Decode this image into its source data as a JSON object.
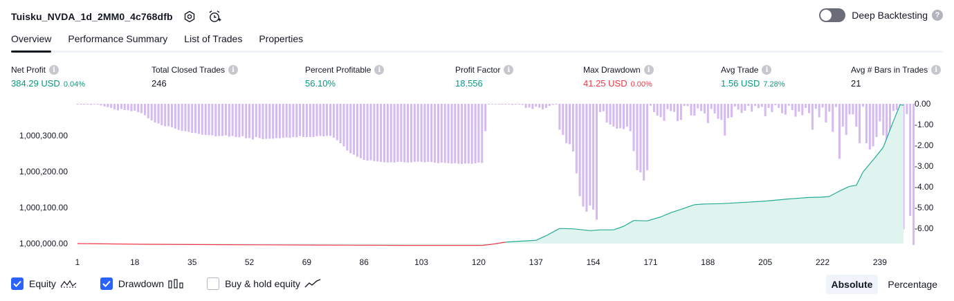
{
  "header": {
    "title": "Tuisku_NVDA_1d_2MM0_4c768dfb",
    "deep_backtesting_label": "Deep Backtesting",
    "deep_backtesting_enabled": false
  },
  "tabs": [
    {
      "label": "Overview",
      "active": true
    },
    {
      "label": "Performance Summary",
      "active": false
    },
    {
      "label": "List of Trades",
      "active": false
    },
    {
      "label": "Properties",
      "active": false
    }
  ],
  "metrics": {
    "net_profit": {
      "label": "Net Profit",
      "value": "384.29 USD",
      "pct": "0.04%"
    },
    "total_closed_trades": {
      "label": "Total Closed Trades",
      "value": "246"
    },
    "percent_profitable": {
      "label": "Percent Profitable",
      "value": "56.10%"
    },
    "profit_factor": {
      "label": "Profit Factor",
      "value": "18.556"
    },
    "max_drawdown": {
      "label": "Max Drawdown",
      "value": "41.25 USD",
      "pct": "0.00%"
    },
    "avg_trade": {
      "label": "Avg Trade",
      "value": "1.56 USD",
      "pct": "7.28%"
    },
    "avg_bars": {
      "label": "Avg # Bars in Trades",
      "value": "21"
    }
  },
  "chart_data": {
    "type": "area",
    "left_axis": {
      "ticks": [
        1000000,
        1000100,
        1000200,
        1000300
      ],
      "tick_labels": [
        "1,000,000.00",
        "1,000,100.00",
        "1,000,200.00",
        "1,000,300.00"
      ]
    },
    "right_axis": {
      "ticks": [
        0,
        -1,
        -2,
        -3,
        -4,
        -5,
        -6
      ],
      "tick_labels": [
        "0.00",
        "-1.00",
        "-2.00",
        "-3.00",
        "-4.00",
        "-5.00",
        "-6.00"
      ]
    },
    "x_ticks": [
      1,
      18,
      35,
      52,
      69,
      86,
      103,
      120,
      137,
      154,
      171,
      188,
      205,
      222,
      239
    ],
    "x_range": [
      1,
      246
    ],
    "equity_points": [
      [
        1,
        1000000
      ],
      [
        20,
        999998
      ],
      [
        45,
        999997
      ],
      [
        70,
        999996
      ],
      [
        100,
        999995
      ],
      [
        121,
        999995
      ],
      [
        124,
        999998
      ],
      [
        128,
        1000004
      ],
      [
        133,
        1000007
      ],
      [
        137,
        1000009
      ],
      [
        140,
        1000022
      ],
      [
        144,
        1000042
      ],
      [
        148,
        1000041
      ],
      [
        150,
        1000039
      ],
      [
        153,
        1000036
      ],
      [
        156,
        1000038
      ],
      [
        160,
        1000038
      ],
      [
        163,
        1000048
      ],
      [
        166,
        1000064
      ],
      [
        170,
        1000063
      ],
      [
        174,
        1000074
      ],
      [
        177,
        1000086
      ],
      [
        180,
        1000095
      ],
      [
        184,
        1000108
      ],
      [
        187,
        1000110
      ],
      [
        192,
        1000111
      ],
      [
        198,
        1000114
      ],
      [
        205,
        1000118
      ],
      [
        212,
        1000124
      ],
      [
        218,
        1000128
      ],
      [
        222,
        1000129
      ],
      [
        224,
        1000131
      ],
      [
        227,
        1000146
      ],
      [
        230,
        1000159
      ],
      [
        232,
        1000162
      ],
      [
        234,
        1000199
      ],
      [
        238,
        1000244
      ],
      [
        240,
        1000268
      ],
      [
        243,
        1000340
      ],
      [
        245,
        1000386
      ],
      [
        246,
        1000384
      ]
    ],
    "drawdown_bars": [
      0,
      -0.02,
      -0.04,
      -0.03,
      -0.05,
      -0.02,
      -0.04,
      -0.08,
      -0.13,
      -0.16,
      -0.2,
      -0.27,
      -0.31,
      -0.25,
      -0.3,
      -0.31,
      -0.36,
      -0.33,
      -0.41,
      -0.45,
      -0.55,
      -0.7,
      -0.8,
      -0.9,
      -0.95,
      -1.03,
      -1.08,
      -1.08,
      -1.13,
      -1.2,
      -1.26,
      -1.3,
      -1.32,
      -1.35,
      -1.4,
      -1.41,
      -1.45,
      -1.49,
      -1.5,
      -1.51,
      -1.52,
      -1.57,
      -1.55,
      -1.55,
      -1.52,
      -1.58,
      -1.55,
      -1.6,
      -1.61,
      -1.56,
      -1.66,
      -1.65,
      -1.72,
      -1.6,
      -1.65,
      -1.7,
      -1.69,
      -1.68,
      -1.68,
      -1.65,
      -1.66,
      -1.64,
      -1.62,
      -1.64,
      -1.6,
      -1.61,
      -1.55,
      -1.6,
      -1.6,
      -1.6,
      -1.6,
      -1.56,
      -1.55,
      -1.57,
      -1.55,
      -1.55,
      -1.63,
      -1.75,
      -1.9,
      -2.05,
      -2.25,
      -2.38,
      -2.45,
      -2.55,
      -2.62,
      -2.7,
      -2.74,
      -2.72,
      -2.76,
      -2.78,
      -2.8,
      -2.82,
      -2.83,
      -2.82,
      -2.83,
      -2.8,
      -2.8,
      -2.82,
      -2.83,
      -2.82,
      -2.8,
      -2.79,
      -2.8,
      -2.82,
      -2.8,
      -2.81,
      -2.84,
      -2.86,
      -2.83,
      -2.85,
      -2.86,
      -2.88,
      -2.86,
      -2.89,
      -2.9,
      -2.88,
      -2.88,
      -2.89,
      -2.87,
      -2.83,
      -2.85,
      -1.32,
      0,
      -0.01,
      0,
      -0.02,
      -0.02,
      -0.01,
      -0.03,
      -0.05,
      0,
      -0.01,
      -0.05,
      -0.2,
      -0.18,
      -0.25,
      -0.14,
      -0.19,
      -0.27,
      -0.2,
      -0.1,
      -0.05,
      -0.02,
      -1.25,
      -1.5,
      -1.9,
      -1.95,
      -2.3,
      -3.35,
      -4.45,
      -4.95,
      -5.2,
      -4.9,
      -5.1,
      -5.58,
      -0.4,
      -0.36,
      -0.9,
      -1.0,
      -1.1,
      -1.2,
      -1.18,
      -1.22,
      -1.1,
      -1.32,
      -2.28,
      -3.2,
      -3.3,
      -3.7,
      -3.2,
      -0.09,
      -0.4,
      -0.57,
      -0.64,
      -0.82,
      -0.26,
      -0.35,
      -0.39,
      -0.83,
      -0.78,
      -0.1,
      -0.11,
      -0.56,
      -0.57,
      -0.22,
      -0.35,
      -0.47,
      -0.93,
      -0.25,
      -0.47,
      -0.72,
      -0.78,
      -1.53,
      -0.69,
      -0.65,
      -0.13,
      -0.28,
      -0.44,
      -0.33,
      -0.1,
      -0.38,
      -0.1,
      -0.21,
      -0.15,
      -0.6,
      -0.2,
      -0.4,
      -0.07,
      -0.2,
      -0.45,
      -0.52,
      -0.09,
      -0.3,
      -0.62,
      -0.38,
      -0.55,
      -0.2,
      -0.45,
      -1.25,
      -0.24,
      -0.65,
      -0.18,
      -0.9,
      -0.38,
      -1.35,
      -0.15,
      -2.65,
      -1.1,
      -1.5,
      -0.51,
      -0.51,
      -1.1,
      -1.9,
      -0.14,
      -1.9,
      -2.2,
      -2.05,
      -1.6,
      -0.85,
      -1.52,
      -3.05,
      -1.6,
      -0.35,
      -0.3,
      -2.25,
      -6.05,
      -0.5,
      -5.4,
      -6.8
    ],
    "series": [
      {
        "name": "Equity",
        "color": "#22ab94",
        "fill": "#e0f4ef"
      },
      {
        "name": "Drawdown",
        "color": "#d5b9f1"
      }
    ],
    "equity_below_color": "#f23645"
  },
  "legend": {
    "equity_label": "Equity",
    "equity_checked": true,
    "drawdown_label": "Drawdown",
    "drawdown_checked": true,
    "buyhold_label": "Buy & hold equity",
    "buyhold_checked": false
  },
  "mode": {
    "absolute_label": "Absolute",
    "percentage_label": "Percentage",
    "selected": "Absolute"
  }
}
